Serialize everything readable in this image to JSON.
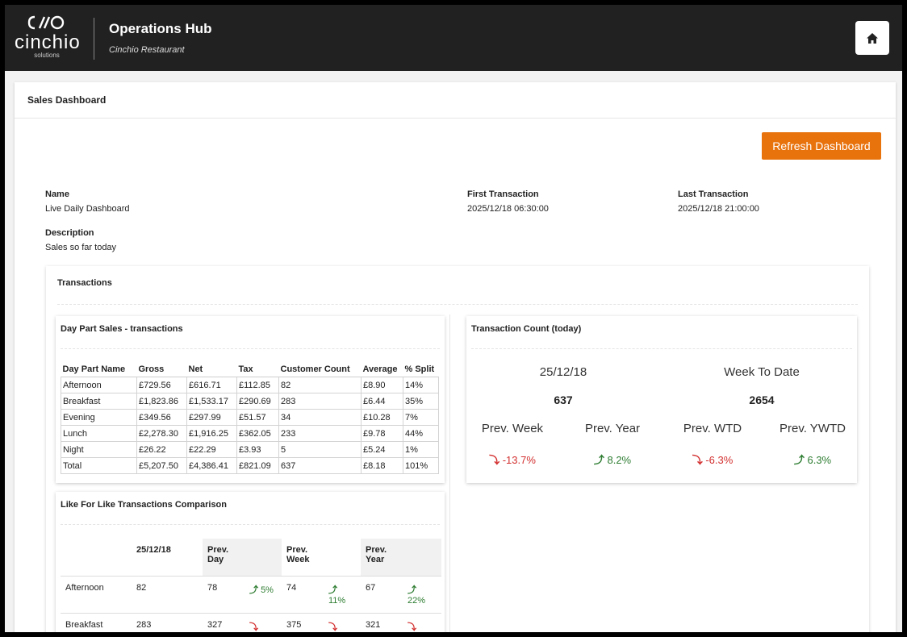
{
  "header": {
    "logo_mark": "CIIO",
    "logo_name": "cinchio",
    "logo_sub": "solutions",
    "title": "Operations Hub",
    "subtitle": "Cinchio Restaurant"
  },
  "page": {
    "title": "Sales Dashboard",
    "refresh_label": "Refresh Dashboard"
  },
  "info": {
    "name_label": "Name",
    "name_value": "Live Daily Dashboard",
    "desc_label": "Description",
    "desc_value": "Sales so far today",
    "first_label": "First Transaction",
    "first_value": "2025/12/18 06:30:00",
    "last_label": "Last Transaction",
    "last_value": "2025/12/18 21:00:00"
  },
  "transactions": {
    "title": "Transactions",
    "day_part": {
      "title": "Day Part Sales - transactions",
      "columns": [
        "Day Part Name",
        "Gross",
        "Net",
        "Tax",
        "Customer Count",
        "Average",
        "% Split"
      ],
      "rows": [
        [
          "Afternoon",
          "£729.56",
          "£616.71",
          "£112.85",
          "82",
          "£8.90",
          "14%"
        ],
        [
          "Breakfast",
          "£1,823.86",
          "£1,533.17",
          "£290.69",
          "283",
          "£6.44",
          "35%"
        ],
        [
          "Evening",
          "£349.56",
          "£297.99",
          "£51.57",
          "34",
          "£10.28",
          "7%"
        ],
        [
          "Lunch",
          "£2,278.30",
          "£1,916.25",
          "£362.05",
          "233",
          "£9.78",
          "44%"
        ],
        [
          "Night",
          "£26.22",
          "£22.29",
          "£3.93",
          "5",
          "£5.24",
          "1%"
        ],
        [
          "Total",
          "£5,207.50",
          "£4,386.41",
          "£821.09",
          "637",
          "£8.18",
          "101%"
        ]
      ]
    },
    "count": {
      "title": "Transaction Count (today)",
      "date": "25/12/18",
      "today_value": "637",
      "wtd_label": "Week To Date",
      "wtd_value": "2654",
      "prev_week_label": "Prev. Week",
      "prev_week_value": "-13.7%",
      "prev_year_label": "Prev. Year",
      "prev_year_value": "8.2%",
      "prev_wtd_label": "Prev. WTD",
      "prev_wtd_value": "-6.3%",
      "prev_ywtd_label": "Prev. YWTD",
      "prev_ywtd_value": "6.3%"
    },
    "lfl": {
      "title": "Like For Like Transactions Comparison",
      "columns": [
        "25/12/18",
        "Prev. Day",
        "Prev. Week",
        "Prev. Year"
      ],
      "rows": [
        {
          "name": "Afternoon",
          "today": "82",
          "prev_day": "78",
          "prev_day_change": "5%",
          "prev_day_dir": "up",
          "prev_week": "74",
          "prev_week_change": "11%",
          "prev_week_dir": "up",
          "prev_year": "67",
          "prev_year_change": "22%",
          "prev_year_dir": "up"
        },
        {
          "name": "Breakfast",
          "today": "283",
          "prev_day": "327",
          "prev_day_change": "",
          "prev_day_dir": "down",
          "prev_week": "375",
          "prev_week_change": "",
          "prev_week_dir": "down",
          "prev_year": "321",
          "prev_year_change": "",
          "prev_year_dir": "down"
        }
      ]
    }
  },
  "colors": {
    "topbar": "#212121",
    "accent": "#e8720c",
    "down": "#d32f2f",
    "up": "#2e7d32"
  },
  "icons": {
    "home": "home-icon",
    "up": "arrow-up-icon",
    "down": "arrow-down-icon"
  }
}
